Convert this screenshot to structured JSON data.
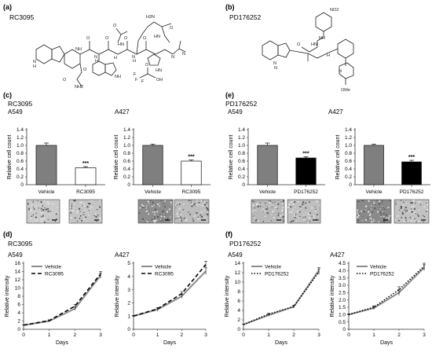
{
  "panels": {
    "a": {
      "label": "(a)",
      "compound": "RC3095"
    },
    "b": {
      "label": "(b)",
      "compound": "PD176252"
    },
    "c": {
      "label": "(c)",
      "compound": "RC3095"
    },
    "d": {
      "label": "(d)",
      "compound": "RC3095"
    },
    "e": {
      "label": "(e)",
      "compound": "PD176252"
    },
    "f": {
      "label": "(f)",
      "compound": "PD176252"
    }
  },
  "structures": {
    "rc3095_atoms": [
      "H2N",
      "O",
      "HN",
      "N",
      "H",
      "HN",
      "NH",
      "N",
      "H",
      "H",
      "N",
      "H",
      "N",
      "HN",
      "O",
      "O",
      "O",
      "O",
      "O",
      "O",
      "NH2",
      "O",
      "F",
      "F",
      "F",
      "OH",
      "N",
      "NH",
      "O"
    ],
    "pd176252_atoms": [
      "NO2",
      "NH",
      "HN",
      "O",
      "N",
      "N",
      "H",
      "N",
      "OMe"
    ]
  },
  "chart_data": [
    {
      "id": "c1",
      "type": "bar",
      "title": "A549",
      "ylabel": "Relative cell count",
      "categories": [
        "Vehicle",
        "RC3095"
      ],
      "values": [
        1.0,
        0.43
      ],
      "errors": [
        0.06,
        0.03
      ],
      "ylim": [
        0,
        1.4
      ],
      "yticks": [
        "0",
        "0.2",
        "0.4",
        "0.6",
        "0.8",
        "1.0",
        "1.2",
        "1.4"
      ],
      "fills": [
        "#7f7f7f",
        "#ffffff"
      ],
      "significance": "***"
    },
    {
      "id": "c2",
      "type": "bar",
      "title": "A427",
      "ylabel": "Relative cell count",
      "categories": [
        "Vehicle",
        "RC3095"
      ],
      "values": [
        1.0,
        0.6
      ],
      "errors": [
        0.03,
        0.03
      ],
      "ylim": [
        0,
        1.4
      ],
      "yticks": [
        "0",
        "0.2",
        "0.4",
        "0.6",
        "0.8",
        "1.0",
        "1.2",
        "1.4"
      ],
      "fills": [
        "#7f7f7f",
        "#ffffff"
      ],
      "significance": "***"
    },
    {
      "id": "e1",
      "type": "bar",
      "title": "A549",
      "ylabel": "Relative cell count",
      "categories": [
        "Vehicle",
        "PD176252"
      ],
      "values": [
        1.0,
        0.68
      ],
      "errors": [
        0.06,
        0.03
      ],
      "ylim": [
        0,
        1.4
      ],
      "yticks": [
        "0",
        "0.2",
        "0.4",
        "0.6",
        "0.8",
        "1.0",
        "1.2",
        "1.4"
      ],
      "fills": [
        "#7f7f7f",
        "#000000"
      ],
      "significance": "***"
    },
    {
      "id": "e2",
      "type": "bar",
      "title": "A427",
      "ylabel": "Relative cell count",
      "categories": [
        "Vehicle",
        "PD176252"
      ],
      "values": [
        1.0,
        0.58
      ],
      "errors": [
        0.03,
        0.04
      ],
      "ylim": [
        0,
        1.4
      ],
      "yticks": [
        "0",
        "0.2",
        "0.4",
        "0.6",
        "0.8",
        "1.0",
        "1.2",
        "1.4"
      ],
      "fills": [
        "#7f7f7f",
        "#000000"
      ],
      "significance": "***"
    },
    {
      "id": "d1",
      "type": "line",
      "title": "A549",
      "xlabel": "Days",
      "ylabel": "Relative intensity",
      "x": [
        0,
        1,
        2,
        3
      ],
      "xlim": [
        0,
        3
      ],
      "xticks": [
        "0",
        "1",
        "2",
        "3"
      ],
      "ylim": [
        0,
        16
      ],
      "yticks": [
        "0",
        "2",
        "4",
        "6",
        "8",
        "10",
        "12",
        "14",
        "16"
      ],
      "series": [
        {
          "name": "Vehicle",
          "values": [
            1.0,
            2.0,
            5.0,
            13.0
          ],
          "errors": [
            0.1,
            0.2,
            0.4,
            0.6
          ],
          "stroke": "#8c8c8c",
          "dash": "",
          "width": 2
        },
        {
          "name": "RC3095",
          "values": [
            1.0,
            2.1,
            5.6,
            13.4
          ],
          "errors": [
            0.1,
            0.2,
            0.4,
            0.6
          ],
          "stroke": "#000000",
          "dash": "5,3",
          "width": 1.6
        }
      ]
    },
    {
      "id": "d2",
      "type": "line",
      "title": "A427",
      "xlabel": "Days",
      "ylabel": "Relative intensity",
      "x": [
        0,
        1,
        2,
        3
      ],
      "xlim": [
        0,
        3
      ],
      "xticks": [
        "0",
        "1",
        "2",
        "3"
      ],
      "ylim": [
        0,
        5
      ],
      "yticks": [
        "0",
        "1",
        "2",
        "3",
        "4",
        "5"
      ],
      "series": [
        {
          "name": "Vehicle",
          "values": [
            1.0,
            1.5,
            2.5,
            4.4
          ],
          "errors": [
            0.05,
            0.1,
            0.15,
            0.25
          ],
          "stroke": "#8c8c8c",
          "dash": "",
          "width": 2
        },
        {
          "name": "RC3095",
          "values": [
            1.0,
            1.55,
            2.7,
            4.9
          ],
          "errors": [
            0.05,
            0.1,
            0.15,
            0.25
          ],
          "stroke": "#000000",
          "dash": "5,3",
          "width": 1.6
        }
      ]
    },
    {
      "id": "f1",
      "type": "line",
      "title": "A549",
      "xlabel": "Days",
      "ylabel": "Relative intensity",
      "x": [
        0,
        1,
        2,
        3
      ],
      "xlim": [
        0,
        3
      ],
      "xticks": [
        "0",
        "1",
        "2",
        "3"
      ],
      "ylim": [
        0,
        14
      ],
      "yticks": [
        "0",
        "2",
        "4",
        "6",
        "8",
        "10",
        "12",
        "14"
      ],
      "series": [
        {
          "name": "Vehicle",
          "values": [
            1.0,
            3.0,
            4.8,
            12.5
          ],
          "errors": [
            0.1,
            0.2,
            0.3,
            0.6
          ],
          "stroke": "#8c8c8c",
          "dash": "",
          "width": 2
        },
        {
          "name": "PD176252",
          "values": [
            1.0,
            3.2,
            4.8,
            12.2
          ],
          "errors": [
            0.1,
            0.2,
            0.3,
            0.6
          ],
          "stroke": "#000000",
          "dash": "1.5,2",
          "width": 1.6
        }
      ]
    },
    {
      "id": "f2",
      "type": "line",
      "title": "A427",
      "xlabel": "Days",
      "ylabel": "Relative intensity",
      "x": [
        0,
        1,
        2,
        3
      ],
      "xlim": [
        0,
        3
      ],
      "xticks": [
        "0",
        "1",
        "2",
        "3"
      ],
      "ylim": [
        0,
        4.5
      ],
      "yticks": [
        "0",
        "0.5",
        "1.0",
        "1.5",
        "2.0",
        "2.5",
        "3.0",
        "3.5",
        "4.0",
        "4.5"
      ],
      "series": [
        {
          "name": "Vehicle",
          "values": [
            1.0,
            1.45,
            2.5,
            4.2
          ],
          "errors": [
            0.05,
            0.1,
            0.2,
            0.2
          ],
          "stroke": "#8c8c8c",
          "dash": "",
          "width": 2
        },
        {
          "name": "PD176252",
          "values": [
            1.0,
            1.5,
            2.7,
            4.3
          ],
          "errors": [
            0.05,
            0.1,
            0.2,
            0.2
          ],
          "stroke": "#000000",
          "dash": "1.5,2",
          "width": 1.6
        }
      ]
    }
  ]
}
